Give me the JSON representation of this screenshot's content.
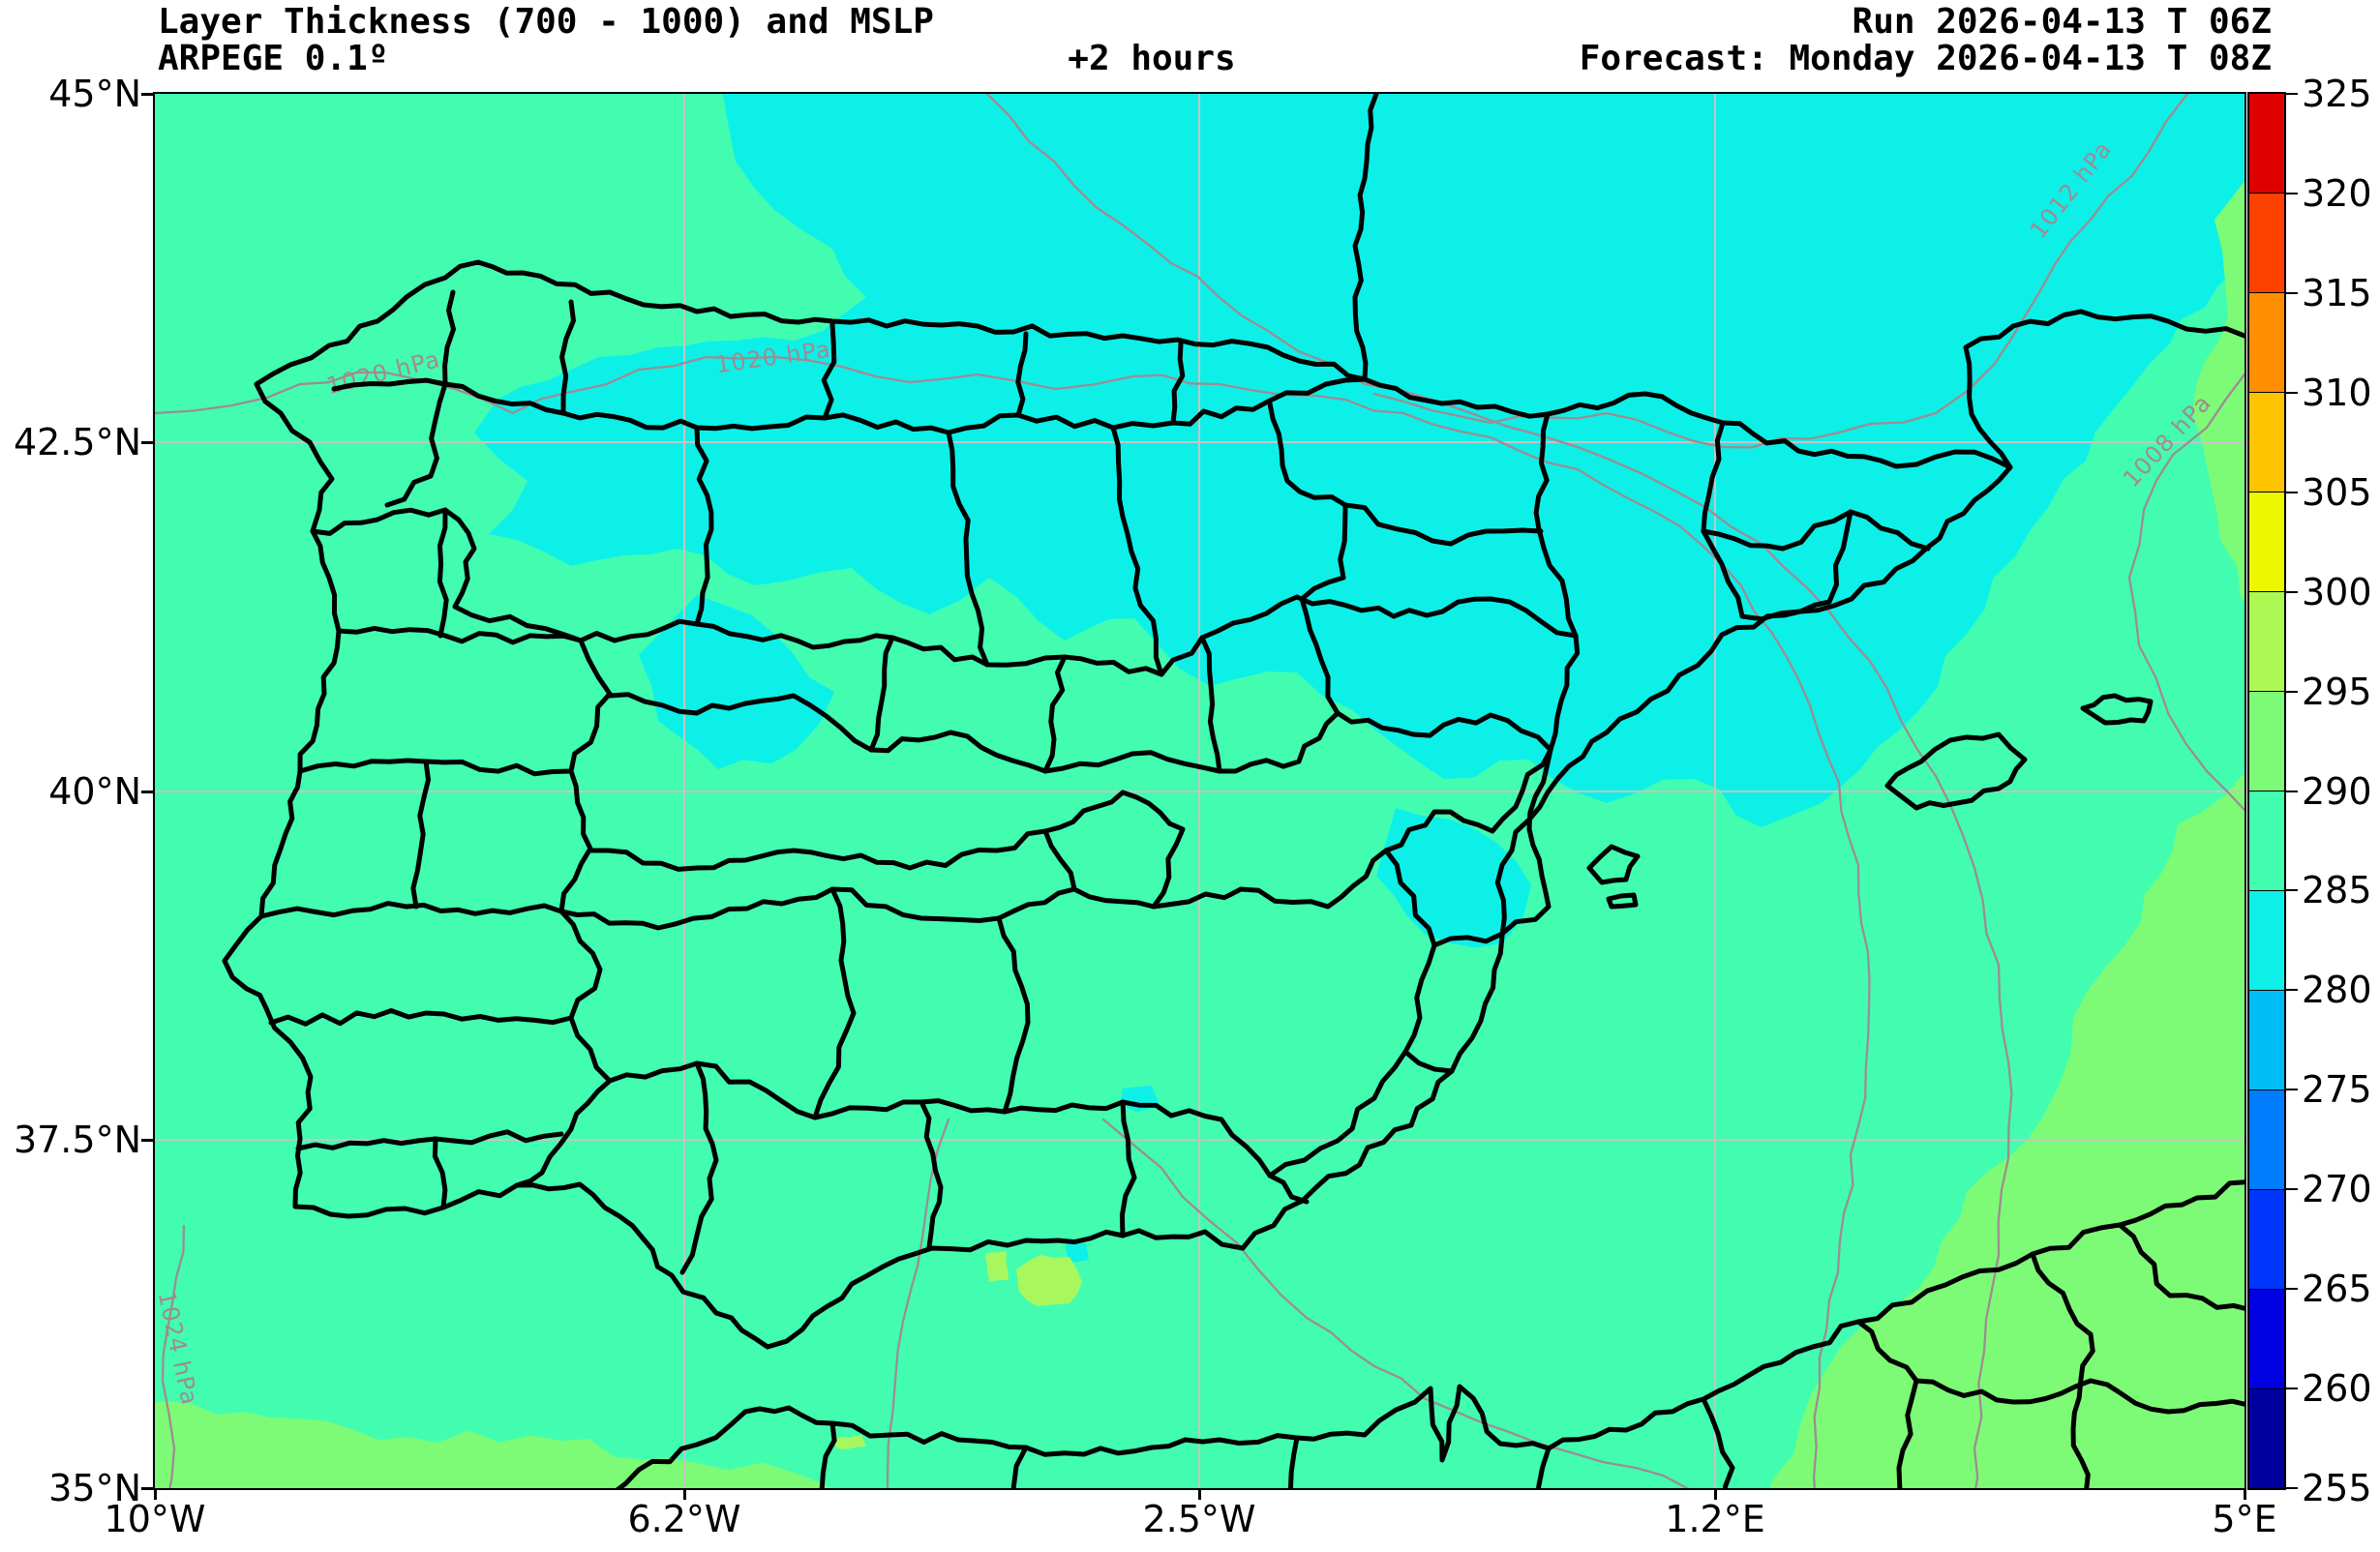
{
  "header": {
    "title": "Layer Thickness (700 - 1000) and MSLP",
    "model": "ARPEGE 0.1º",
    "lead_time": "+2 hours",
    "run": "Run 2026-04-13 T 06Z",
    "forecast": "Forecast: Monday 2026-04-13 T 08Z"
  },
  "axes": {
    "x_ticks": [
      "10°W",
      "6.2°W",
      "2.5°W",
      "1.2°E",
      "5°E"
    ],
    "y_ticks": [
      "45°N",
      "42.5°N",
      "40°N",
      "37.5°N",
      "35°N"
    ]
  },
  "colorbar": {
    "tick_labels": [
      "325",
      "320",
      "315",
      "310",
      "305",
      "300",
      "295",
      "290",
      "285",
      "280",
      "275",
      "270",
      "265",
      "260",
      "255"
    ],
    "band_colors_top_to_bottom": [
      "#DF0000",
      "#FF4100",
      "#FF8E00",
      "#FFC400",
      "#EDF800",
      "#ADF954",
      "#7DFB76",
      "#42FDB0",
      "#0DF0E8",
      "#00BDF5",
      "#007DFF",
      "#0036FB",
      "#0000E3",
      "#00009E"
    ]
  },
  "map": {
    "colors": {
      "base_field": "#42FDB0",
      "cool_field": "#0DF0E8",
      "warm_field": "#7DFB76",
      "warm_field_2": "#A9F75F",
      "isobar": "#9E8C92",
      "grid": "#C4C4C4",
      "boundary": "#000000"
    },
    "isobar_labels": [
      "1020 hPa",
      "1020 hPa",
      "1012 hPa",
      "1008 hPa",
      "1024 hPa"
    ]
  },
  "chart_data": {
    "type": "heatmap",
    "title": "Layer Thickness (700 - 1000) and MSLP",
    "model": "ARPEGE 0.1º",
    "lead": "+2 hours",
    "run": "Run 2026-04-13 T 06Z",
    "valid": "Forecast: Monday 2026-04-13 T 08Z",
    "region": "Iberian Peninsula and western Mediterranean",
    "x_ticks": [
      "10°W",
      "6.2°W",
      "2.5°W",
      "1.2°E",
      "5°E"
    ],
    "y_ticks": [
      "45°N",
      "42.5°N",
      "40°N",
      "37.5°N",
      "35°N"
    ],
    "lon_range_deg": [
      -10,
      5
    ],
    "lat_range_deg": [
      35,
      45
    ],
    "colorbar_ticks": [
      325,
      320,
      315,
      310,
      305,
      300,
      295,
      290,
      285,
      280,
      275,
      270,
      265,
      260,
      255
    ],
    "colorbar_band_colors_top_to_bottom": [
      "#DF0000",
      "#FF4100",
      "#FF8E00",
      "#FFC400",
      "#EDF800",
      "#ADF954",
      "#7DFB76",
      "#42FDB0",
      "#0DF0E8",
      "#00BDF5",
      "#007DFF",
      "#0036FB",
      "#0000E3",
      "#00009E"
    ],
    "field_summary": {
      "dominant_thickness_band": "285-290",
      "north_france_and_north_spain_band": "280-285",
      "southeast_mediterranean_band": "290-295",
      "small_south_patches_band": "295-300"
    },
    "mslp_isobars_hpa": [
      1024,
      1020,
      1012,
      1008
    ],
    "grid": true,
    "legend_position": "right-colorbar"
  }
}
